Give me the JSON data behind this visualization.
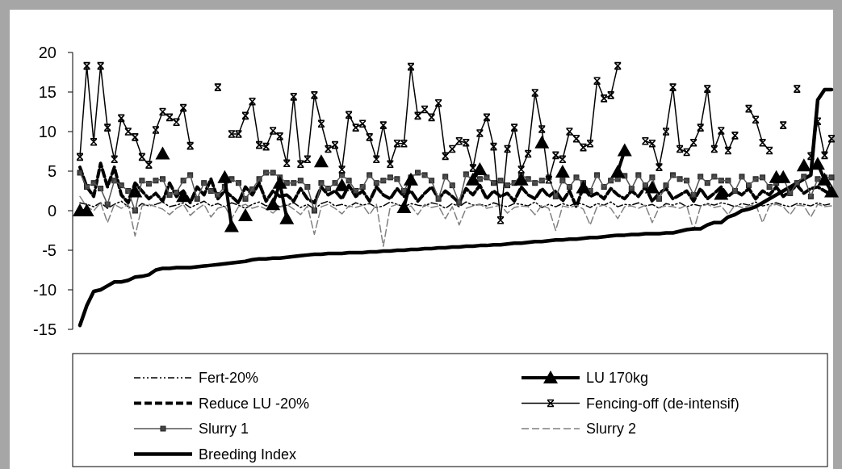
{
  "chart_data": {
    "type": "line",
    "categories": [
      null,
      null,
      null,
      null,
      null,
      null,
      null,
      null,
      null,
      null,
      null,
      null,
      null,
      null,
      null,
      null,
      null,
      null,
      null,
      null,
      null,
      null,
      null,
      null,
      null,
      null,
      null,
      null,
      null,
      null,
      null,
      null,
      null,
      null,
      null,
      null,
      null,
      null,
      null,
      null,
      null,
      null,
      null,
      null,
      null,
      null,
      null,
      null,
      null,
      null,
      null,
      null,
      null,
      null,
      null,
      null,
      null,
      null,
      null,
      null,
      null,
      null,
      null,
      null,
      null,
      null,
      null,
      null,
      null,
      null,
      null,
      null,
      null,
      null,
      null,
      null,
      null,
      null,
      null,
      null,
      null,
      null,
      null,
      null,
      null,
      null,
      null,
      null,
      null,
      null,
      null,
      null,
      null,
      null,
      null,
      null,
      null,
      null,
      null,
      null,
      null,
      null,
      null,
      null,
      null,
      null,
      null,
      null,
      null,
      null
    ],
    "ylim": [
      -15,
      20
    ],
    "yticks": [
      -15,
      -10,
      -5,
      0,
      5,
      10,
      15,
      20
    ],
    "grid": false,
    "legend": "bottom",
    "series": [
      {
        "name": "Fert-20%",
        "color": "#000000",
        "line_style": "dotted",
        "marker": "none",
        "values": [
          1,
          0.8,
          0.5,
          1,
          0.3,
          0.8,
          1.2,
          0.5,
          0.2,
          0.9,
          0.6,
          0.8,
          1.1,
          0.5,
          0.7,
          1,
          0.4,
          0.8,
          1.2,
          0.6,
          0.9,
          0.5,
          1,
          0.7,
          0.3,
          0.8,
          1.1,
          0.6,
          0.9,
          0.5,
          0.7,
          1,
          0.4,
          0.8,
          0.2,
          0.9,
          1.2,
          0.6,
          0.8,
          0.5,
          1,
          0.7,
          0.9,
          0.4,
          0.6,
          1.1,
          0.8,
          0.5,
          0.9,
          0.7,
          0.6,
          1,
          0.8,
          0.3,
          0.9,
          0.5,
          1.1,
          0.7,
          0.8,
          0.6,
          1,
          0.7,
          0.5,
          0.9,
          0.8,
          0.6,
          1.1,
          0.4,
          0.8,
          0.5,
          0.9,
          0.6,
          1,
          0.8,
          0.4,
          0.9,
          0.7,
          1.1,
          0.5,
          0.8,
          0.7,
          1,
          0.6,
          0.8,
          0.3,
          0.9,
          0.7,
          1,
          0.5,
          0.8,
          0.6,
          0.9,
          0.7,
          1,
          0.8,
          0.5,
          0.9,
          0.7,
          1.1,
          0.6,
          0.8,
          1,
          0.7,
          0.5,
          0.9,
          0.8,
          0.6,
          1,
          0.7,
          0.9
        ]
      },
      {
        "name": "LU 170kg",
        "color": "#000000",
        "line_style": "solid",
        "marker": "triangle",
        "values": [
          0,
          0,
          null,
          null,
          null,
          null,
          null,
          null,
          2.4,
          null,
          null,
          null,
          7.2,
          null,
          null,
          1.8,
          null,
          null,
          null,
          null,
          null,
          4.2,
          -2,
          null,
          -0.6,
          null,
          null,
          null,
          0.8,
          3.5,
          -1,
          null,
          null,
          null,
          null,
          6.2,
          null,
          null,
          3.2,
          null,
          null,
          null,
          null,
          null,
          null,
          null,
          null,
          0.4,
          3.9,
          null,
          null,
          null,
          null,
          null,
          null,
          null,
          null,
          3.9,
          5.2,
          null,
          null,
          null,
          null,
          null,
          3.9,
          null,
          null,
          8.6,
          null,
          null,
          4.9,
          null,
          null,
          2.9,
          null,
          null,
          null,
          null,
          4.9,
          7.6,
          null,
          null,
          null,
          2.9,
          null,
          null,
          null,
          null,
          null,
          null,
          null,
          null,
          null,
          2.1,
          null,
          null,
          null,
          null,
          null,
          null,
          null,
          4.2,
          4.2,
          null,
          null,
          5.7,
          null,
          5.9,
          3.9,
          2.4
        ]
      },
      {
        "name": "Reduce LU -20%",
        "color": "#000000",
        "line_style": "dashed",
        "marker": "none",
        "values": [
          5.5,
          3,
          1.8,
          6,
          3,
          5.5,
          2,
          1,
          3.5,
          2.5,
          1.5,
          2.2,
          1.2,
          3.5,
          1.8,
          2.5,
          1,
          3,
          2,
          4,
          1.5,
          2.5,
          1.8,
          1,
          3,
          2,
          3.5,
          1.2,
          2.5,
          1.8,
          2,
          1.2,
          2.8,
          1.5,
          1,
          3,
          2,
          2.5,
          1.5,
          3.2,
          1.8,
          2.5,
          1.2,
          3,
          2,
          1.5,
          2.8,
          1.8,
          2.5,
          1.2,
          2.2,
          3,
          1.5,
          2.5,
          1.8,
          1,
          2.8,
          2,
          3.2,
          1.5,
          2.5,
          1.8,
          2.2,
          1.2,
          3,
          2,
          1.5,
          2.8,
          1.8,
          2.5,
          1.2,
          2.5,
          0.5,
          3,
          1.8,
          2.2,
          1.5,
          2.8,
          2,
          1.5,
          2.5,
          1.8,
          3,
          1.2,
          2.2,
          2.8,
          1.5,
          2,
          2.5,
          1.2,
          2.8,
          1.5,
          2.2,
          3,
          1.8,
          2.5,
          2,
          2.8,
          1.5,
          2.5,
          2,
          3,
          1.8,
          2.5,
          3.2,
          2.2,
          2.8,
          3,
          2.5,
          2
        ]
      },
      {
        "name": "Fencing-off (de-intensif)",
        "color": "#000000",
        "line_style": "solid",
        "marker": "cross",
        "values": [
          6.8,
          18.3,
          8.7,
          18.3,
          10.5,
          6.5,
          11.7,
          10,
          9.3,
          6.8,
          5.8,
          10.2,
          12.5,
          11.8,
          11.2,
          13,
          8.2,
          null,
          null,
          null,
          15.6,
          null,
          9.7,
          9.7,
          12,
          13.8,
          8.3,
          8.1,
          10.1,
          9.4,
          6,
          14.4,
          5.9,
          6.5,
          14.6,
          11,
          7.8,
          8.3,
          5.2,
          12.1,
          10.5,
          11,
          9.3,
          6.5,
          10.8,
          5.9,
          8.5,
          8.5,
          18.2,
          12,
          12.8,
          11.8,
          13.6,
          6.9,
          7.8,
          8.8,
          8.6,
          5.4,
          9.8,
          11.8,
          8.1,
          -1.2,
          7.8,
          10.5,
          5.2,
          7.2,
          14.9,
          10.3,
          3.9,
          7,
          6.5,
          10,
          9.1,
          8,
          8.5,
          16.4,
          14.2,
          14.6,
          18.3,
          null,
          null,
          null,
          8.8,
          8.5,
          5.5,
          10,
          15.6,
          7.8,
          7.4,
          8.6,
          10.5,
          15.4,
          7.8,
          10.1,
          7.6,
          9.5,
          null,
          12.9,
          11.5,
          8.6,
          7.6,
          null,
          10.8,
          null,
          15.4,
          null,
          6.9,
          11.3,
          7,
          9.1
        ]
      },
      {
        "name": "Slurry 1",
        "color": "#555555",
        "line_style": "solid",
        "marker": "square",
        "values": [
          4.8,
          3,
          3.5,
          2.8,
          0.8,
          3.8,
          3.2,
          2.5,
          0,
          3.8,
          3.4,
          3.8,
          4,
          2,
          2.3,
          3.8,
          4.5,
          1.5,
          3.5,
          2.5,
          2,
          3,
          4,
          3.5,
          1.5,
          2.7,
          4,
          4.8,
          4.8,
          4.2,
          3.5,
          3.5,
          3.8,
          3,
          0,
          3.5,
          2.8,
          3.5,
          4.5,
          3.8,
          2.5,
          3,
          4.5,
          3.5,
          3.8,
          4.2,
          4,
          2.5,
          4.2,
          4.8,
          4.5,
          3.8,
          1.5,
          4.3,
          3.2,
          1,
          4.6,
          3.8,
          4,
          4.2,
          3.5,
          3.8,
          3.2,
          3.5,
          4.5,
          4,
          3.5,
          3.8,
          4.2,
          1.8,
          3.8,
          3,
          4.2,
          3.5,
          2.5,
          4.5,
          3,
          3.8,
          4,
          4.4,
          2.8,
          4.5,
          3.2,
          4.2,
          1.5,
          3.2,
          4.5,
          4,
          3.8,
          2,
          4.3,
          3.5,
          4.3,
          3.8,
          3.8,
          2.5,
          4.3,
          3.2,
          4,
          4.2,
          3,
          3.5,
          4.1,
          2.2,
          3.5,
          4.3,
          1.8,
          4,
          4.2,
          4.2
        ]
      },
      {
        "name": "Slurry 2",
        "color": "#808080",
        "line_style": "dashed",
        "marker": "none",
        "values": [
          1.8,
          0.5,
          0,
          1,
          -1.5,
          0.8,
          0.3,
          0.8,
          -3.2,
          0.6,
          0.8,
          0.5,
          0.2,
          -0.5,
          0.3,
          0.8,
          -0.6,
          0.2,
          0.8,
          -0.8,
          0.3,
          0.6,
          -1,
          0.5,
          0.8,
          0.3,
          0.6,
          0.2,
          -0.3,
          0.5,
          0.8,
          0.2,
          -0.5,
          0.6,
          -3,
          0.5,
          0.8,
          0.3,
          -0.4,
          0.6,
          0.4,
          0.7,
          -0.5,
          0.8,
          -4.5,
          0.5,
          0.8,
          0.2,
          0.6,
          -0.5,
          0.8,
          0.4,
          0.6,
          -1,
          0.5,
          -1.8,
          0.3,
          0.6,
          0.8,
          0.3,
          0.5,
          0.7,
          -0.3,
          0.4,
          0.6,
          0.5,
          -0.5,
          0.7,
          0.3,
          -2.5,
          0.6,
          0.4,
          0.7,
          0.2,
          -1.8,
          0.5,
          0.7,
          0.3,
          -1,
          0.5,
          0.6,
          0.3,
          0.7,
          -1.5,
          0.4,
          0.6,
          0.5,
          0.3,
          0.7,
          -2.5,
          0.5,
          0.8,
          0.4,
          0.6,
          -0.5,
          0.7,
          0.4,
          0.6,
          0.8,
          -1.5,
          0.6,
          0.8,
          0.5,
          -0.5,
          0.7,
          0.6,
          -0.8,
          0.8,
          0.5,
          0.6
        ]
      },
      {
        "name": "Breeding Index",
        "color": "#000000",
        "line_style": "solid",
        "marker": "none",
        "values": [
          -14.5,
          -12,
          -10.2,
          -10,
          -9.5,
          -9,
          -9,
          -8.8,
          -8.4,
          -8.3,
          -8.1,
          -7.5,
          -7.3,
          -7.3,
          -7.2,
          -7.2,
          -7.2,
          -7.1,
          -7,
          -6.9,
          -6.8,
          -6.7,
          -6.6,
          -6.5,
          -6.4,
          -6.2,
          -6.1,
          -6.1,
          -6,
          -6,
          -5.9,
          -5.8,
          -5.7,
          -5.6,
          -5.5,
          -5.5,
          -5.4,
          -5.4,
          -5.4,
          -5.3,
          -5.3,
          -5.3,
          -5.2,
          -5.2,
          -5.1,
          -5.1,
          -5,
          -5,
          -4.9,
          -4.9,
          -4.8,
          -4.8,
          -4.7,
          -4.7,
          -4.6,
          -4.6,
          -4.5,
          -4.5,
          -4.4,
          -4.4,
          -4.3,
          -4.3,
          -4.2,
          -4.1,
          -4.1,
          -4,
          -3.9,
          -3.9,
          -3.8,
          -3.7,
          -3.7,
          -3.6,
          -3.6,
          -3.5,
          -3.4,
          -3.4,
          -3.3,
          -3.2,
          -3.1,
          -3.1,
          -3,
          -3,
          -2.9,
          -2.9,
          -2.9,
          -2.8,
          -2.8,
          -2.6,
          -2.4,
          -2.3,
          -2.3,
          -1.8,
          -1.5,
          -1.5,
          -0.8,
          -0.5,
          0,
          0.2,
          0.5,
          1,
          1.5,
          2,
          2.5,
          3,
          3.5,
          4,
          4.5,
          14,
          15.3,
          15.3
        ]
      }
    ]
  }
}
